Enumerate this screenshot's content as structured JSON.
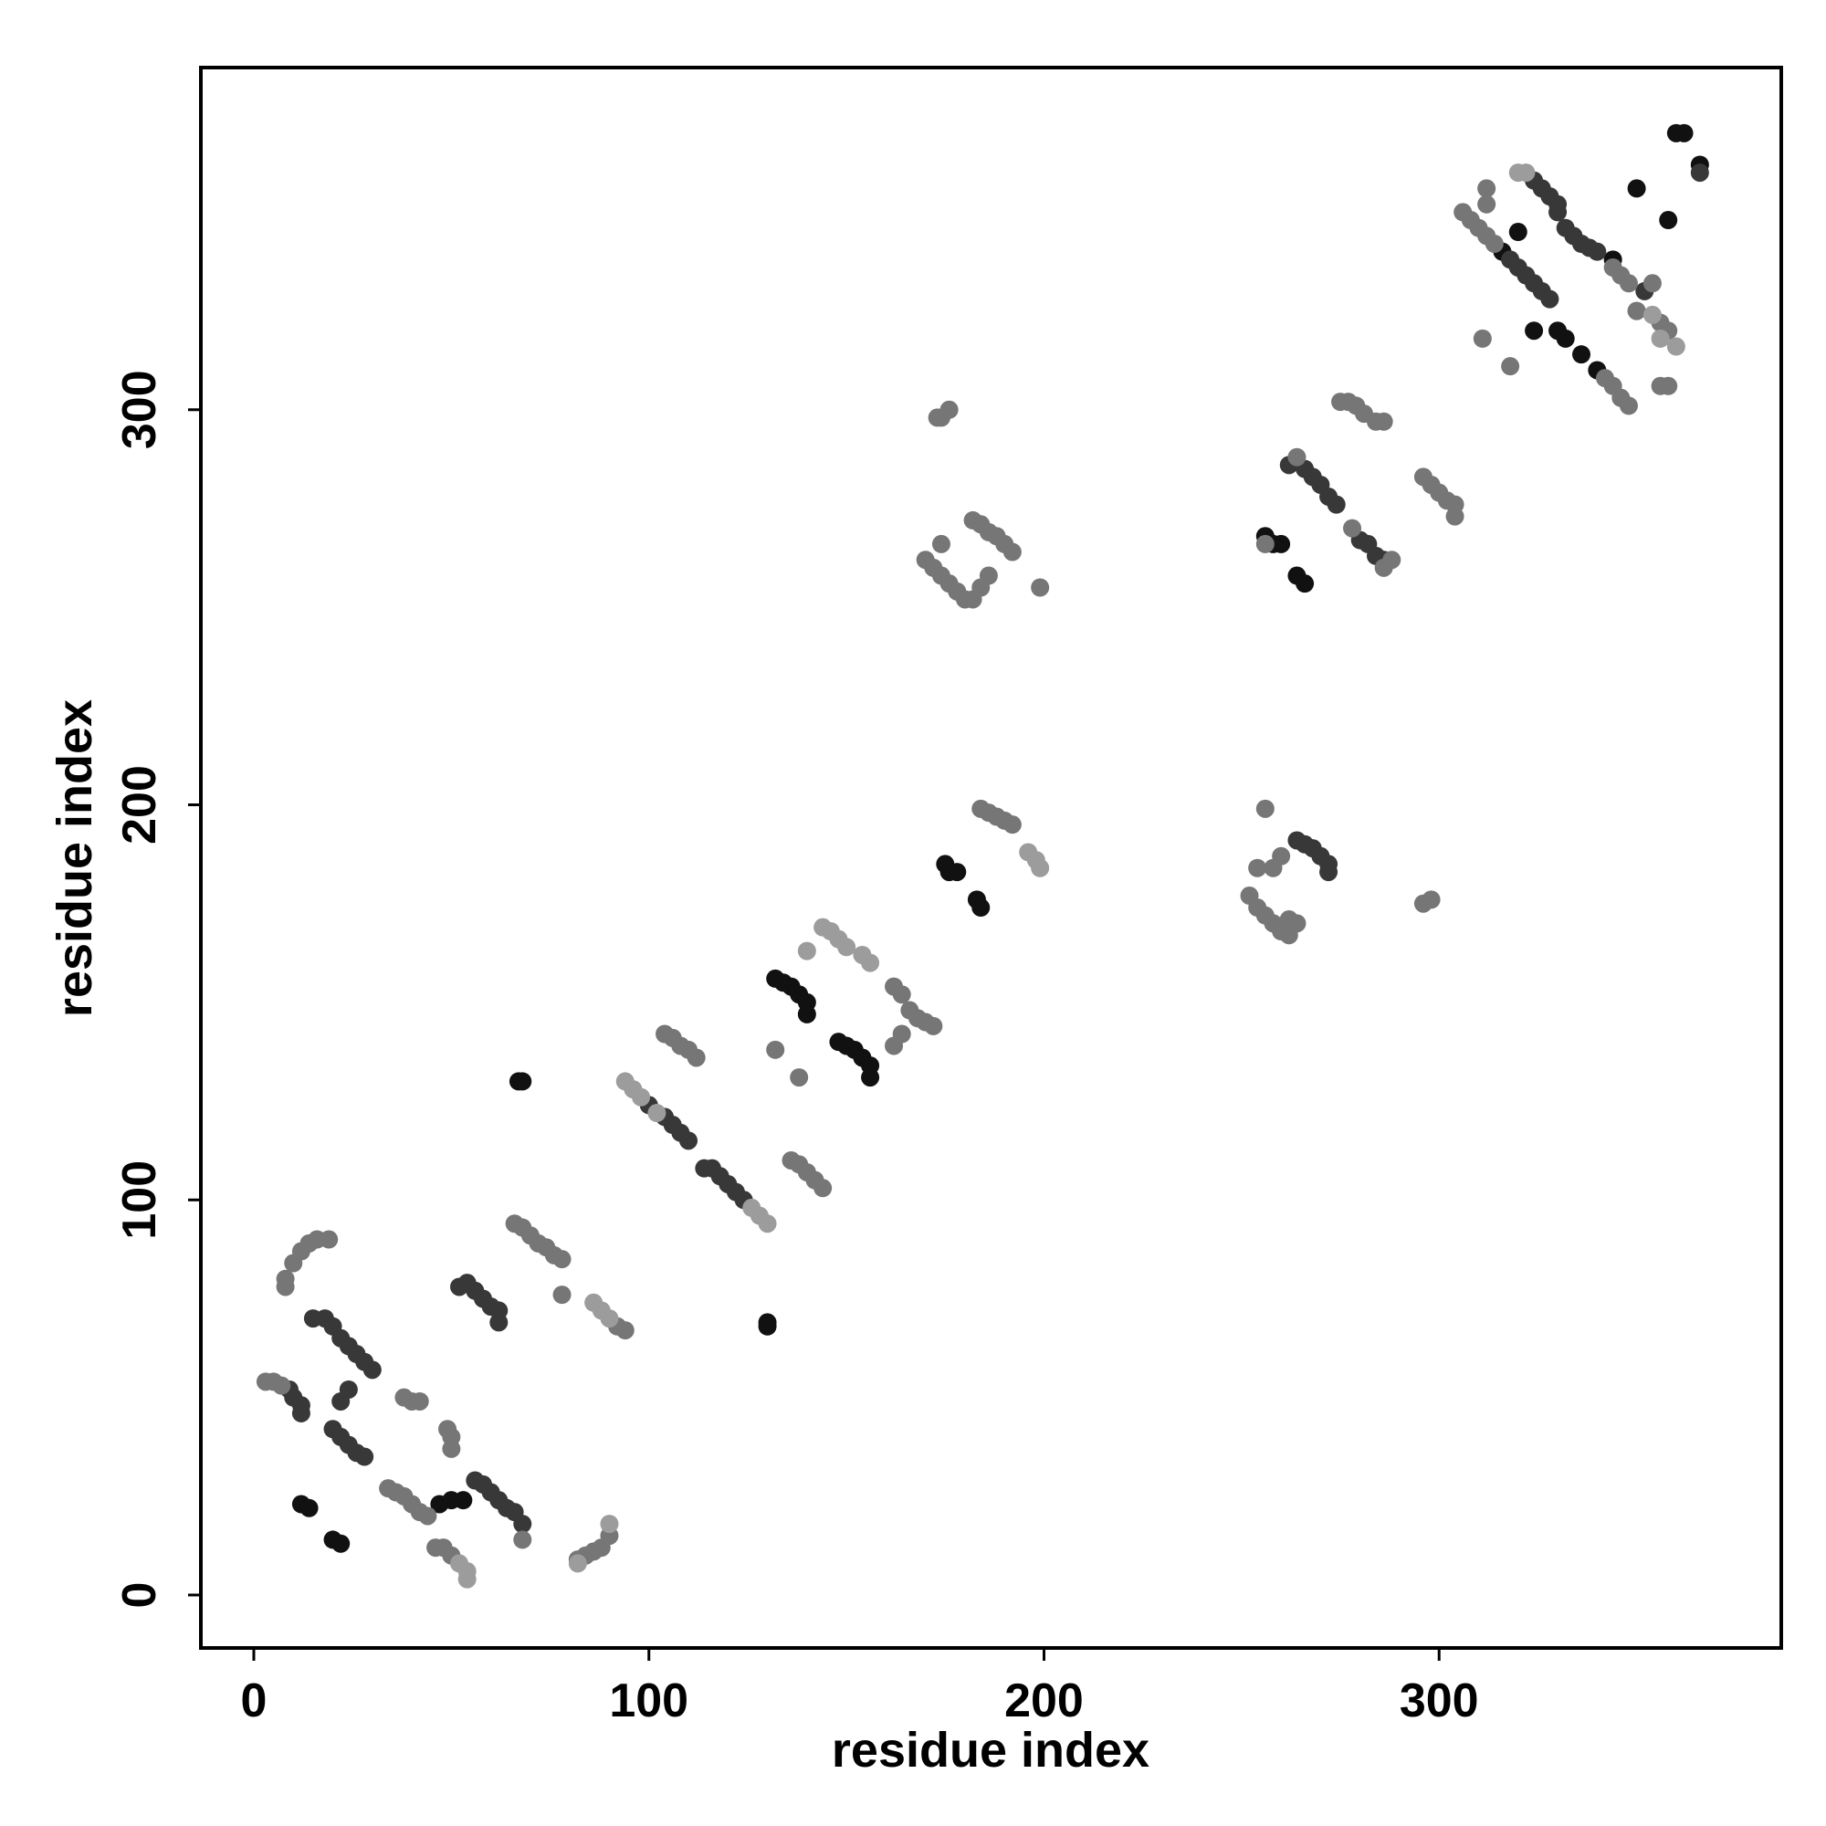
{
  "chart_data": {
    "type": "scatter",
    "xlabel": "residue index",
    "ylabel": "residue index",
    "xlim": [
      -13.4,
      386.6
    ],
    "ylim": [
      -13.4,
      386.6
    ],
    "xticks": [
      0,
      100,
      200,
      300
    ],
    "yticks": [
      0,
      100,
      200,
      300
    ],
    "series": [
      {
        "color": "#111111",
        "x": [
          12,
          14,
          20,
          22,
          47,
          50,
          53,
          67,
          68,
          130,
          130,
          132,
          134,
          136,
          138,
          140,
          140,
          148,
          150,
          152,
          154,
          156,
          156,
          175,
          176,
          178,
          183,
          184,
          256,
          258,
          260,
          264,
          266,
          316,
          320,
          324,
          330,
          332,
          336,
          340,
          344,
          350,
          358,
          360,
          362,
          366
        ],
        "values": [
          23,
          22,
          14,
          13,
          23,
          24,
          24,
          130,
          130,
          68,
          69,
          156,
          155,
          154,
          152,
          150,
          147,
          140,
          139,
          138,
          136,
          134,
          131,
          185,
          183,
          183,
          176,
          174,
          268,
          266,
          266,
          258,
          256,
          340,
          345,
          320,
          320,
          318,
          314,
          310,
          338,
          356,
          348,
          370,
          370,
          362
        ]
      },
      {
        "color": "#383838",
        "x": [
          9,
          10,
          12,
          12,
          15,
          18,
          20,
          22,
          24,
          26,
          28,
          30,
          22,
          24,
          20,
          22,
          24,
          26,
          28,
          52,
          54,
          56,
          58,
          60,
          62,
          62,
          56,
          58,
          60,
          62,
          64,
          66,
          68,
          100,
          104,
          106,
          108,
          110,
          114,
          116,
          118,
          120,
          122,
          124,
          262,
          266,
          268,
          270,
          272,
          274,
          264,
          266,
          268,
          270,
          272,
          272,
          280,
          282,
          284,
          286,
          318,
          320,
          322,
          324,
          326,
          328,
          330,
          332,
          334,
          336,
          338,
          340,
          324,
          326,
          328,
          330,
          352,
          366
        ],
        "values": [
          52,
          50,
          48,
          46,
          70,
          70,
          68,
          65,
          63,
          61,
          59,
          57,
          49,
          52,
          42,
          40,
          38,
          36,
          35,
          78,
          79,
          77,
          75,
          73,
          72,
          69,
          29,
          28,
          26,
          24,
          22,
          21,
          18,
          124,
          121,
          119,
          117,
          115,
          108,
          108,
          106,
          104,
          102,
          100,
          286,
          285,
          283,
          281,
          278,
          276,
          191,
          190,
          189,
          187,
          185,
          183,
          267,
          266,
          263,
          262,
          338,
          336,
          334,
          332,
          330,
          328,
          350,
          346,
          344,
          342,
          341,
          340,
          358,
          356,
          354,
          352,
          330,
          360
        ]
      },
      {
        "color": "#767676",
        "x": [
          3,
          5,
          7,
          8,
          10,
          12,
          14,
          16,
          19,
          8,
          34,
          36,
          38,
          40,
          42,
          44,
          38,
          40,
          42,
          49,
          50,
          50,
          46,
          48,
          50,
          66,
          68,
          70,
          72,
          74,
          76,
          78,
          68,
          78,
          82,
          84,
          86,
          88,
          90,
          92,
          94,
          104,
          106,
          108,
          110,
          112,
          132,
          138,
          136,
          138,
          140,
          142,
          144,
          162,
          164,
          166,
          168,
          170,
          172,
          164,
          162,
          184,
          186,
          188,
          190,
          192,
          170,
          172,
          174,
          176,
          178,
          180,
          182,
          174,
          182,
          184,
          186,
          188,
          190,
          192,
          186,
          184,
          199,
          173,
          174,
          176,
          252,
          254,
          256,
          258,
          260,
          262,
          256,
          258,
          254,
          260,
          264,
          262,
          256,
          264,
          275,
          277,
          279,
          281,
          284,
          286,
          278,
          288,
          286,
          296,
          298,
          300,
          302,
          304,
          304,
          296,
          298,
          306,
          308,
          310,
          312,
          314,
          312,
          312,
          318,
          311,
          342,
          344,
          346,
          348,
          344,
          346,
          348,
          350,
          354,
          356,
          358,
          350,
          356,
          358
        ],
        "values": [
          54,
          54,
          53,
          80,
          84,
          87,
          89,
          90,
          90,
          78,
          27,
          26,
          25,
          23,
          21,
          20,
          50,
          49,
          49,
          42,
          40,
          37,
          12,
          12,
          10,
          94,
          93,
          91,
          89,
          88,
          86,
          85,
          14,
          76,
          9,
          10,
          11,
          12,
          15,
          68,
          67,
          142,
          141,
          139,
          138,
          136,
          138,
          131,
          110,
          109,
          107,
          105,
          103,
          154,
          152,
          148,
          146,
          145,
          144,
          142,
          139,
          199,
          198,
          197,
          196,
          195,
          262,
          260,
          258,
          256,
          254,
          252,
          252,
          266,
          272,
          271,
          269,
          268,
          266,
          264,
          258,
          255,
          255,
          298,
          298,
          300,
          177,
          174,
          172,
          170,
          168,
          167,
          199,
          184,
          184,
          187,
          170,
          171,
          266,
          288,
          302,
          302,
          301,
          299,
          297,
          297,
          270,
          262,
          260,
          283,
          281,
          279,
          277,
          276,
          273,
          175,
          176,
          350,
          348,
          346,
          344,
          342,
          356,
          352,
          311,
          318,
          308,
          306,
          303,
          301,
          336,
          334,
          332,
          325,
          332,
          306,
          306,
          325,
          322,
          320
        ]
      },
      {
        "color": "#9c9c9c",
        "x": [
          52,
          54,
          54,
          82,
          86,
          88,
          90,
          90,
          94,
          96,
          98,
          102,
          126,
          128,
          130,
          140,
          144,
          146,
          148,
          150,
          154,
          156,
          196,
          198,
          199,
          320,
          322,
          354,
          356,
          360
        ],
        "values": [
          8,
          6,
          4,
          8,
          74,
          72,
          70,
          18,
          130,
          128,
          126,
          122,
          98,
          96,
          94,
          163,
          169,
          168,
          166,
          164,
          162,
          160,
          188,
          186,
          184,
          360,
          360,
          324,
          318,
          316
        ]
      }
    ]
  }
}
